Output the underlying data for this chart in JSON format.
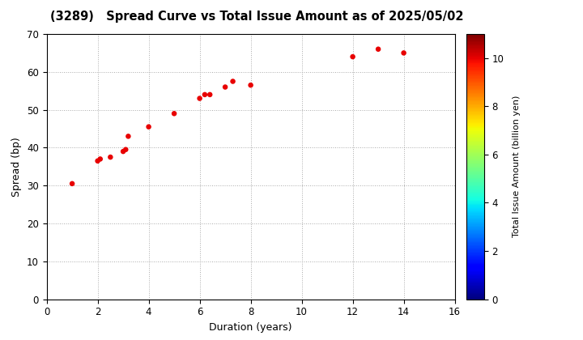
{
  "title": "(3289)   Spread Curve vs Total Issue Amount as of 2025/05/02",
  "xlabel": "Duration (years)",
  "ylabel": "Spread (bp)",
  "colorbar_label": "Total Issue Amount (billion yen)",
  "xlim": [
    0,
    16
  ],
  "ylim": [
    0,
    70
  ],
  "xticks": [
    0,
    2,
    4,
    6,
    8,
    10,
    12,
    14,
    16
  ],
  "yticks": [
    0,
    10,
    20,
    30,
    40,
    50,
    60,
    70
  ],
  "colorbar_ticks": [
    0,
    2,
    4,
    6,
    8,
    10
  ],
  "data_points": [
    {
      "duration": 1.0,
      "spread": 30.5,
      "amount": 10
    },
    {
      "duration": 2.0,
      "spread": 36.5,
      "amount": 10
    },
    {
      "duration": 2.1,
      "spread": 37.0,
      "amount": 10
    },
    {
      "duration": 2.5,
      "spread": 37.5,
      "amount": 10
    },
    {
      "duration": 3.0,
      "spread": 39.0,
      "amount": 10
    },
    {
      "duration": 3.1,
      "spread": 39.5,
      "amount": 10
    },
    {
      "duration": 3.2,
      "spread": 43.0,
      "amount": 10
    },
    {
      "duration": 4.0,
      "spread": 45.5,
      "amount": 10
    },
    {
      "duration": 5.0,
      "spread": 49.0,
      "amount": 10
    },
    {
      "duration": 6.0,
      "spread": 53.0,
      "amount": 10
    },
    {
      "duration": 6.2,
      "spread": 54.0,
      "amount": 10
    },
    {
      "duration": 6.4,
      "spread": 54.0,
      "amount": 10
    },
    {
      "duration": 7.0,
      "spread": 56.0,
      "amount": 10
    },
    {
      "duration": 7.3,
      "spread": 57.5,
      "amount": 10
    },
    {
      "duration": 8.0,
      "spread": 56.5,
      "amount": 10
    },
    {
      "duration": 12.0,
      "spread": 64.0,
      "amount": 10
    },
    {
      "duration": 13.0,
      "spread": 66.0,
      "amount": 10
    },
    {
      "duration": 14.0,
      "spread": 65.0,
      "amount": 10
    }
  ],
  "background_color": "#ffffff",
  "grid_color": "#aaaaaa",
  "colormap": "jet",
  "title_fontsize": 10.5,
  "label_fontsize": 9,
  "tick_fontsize": 8.5,
  "colorbar_label_fontsize": 8,
  "dot_size": 22
}
